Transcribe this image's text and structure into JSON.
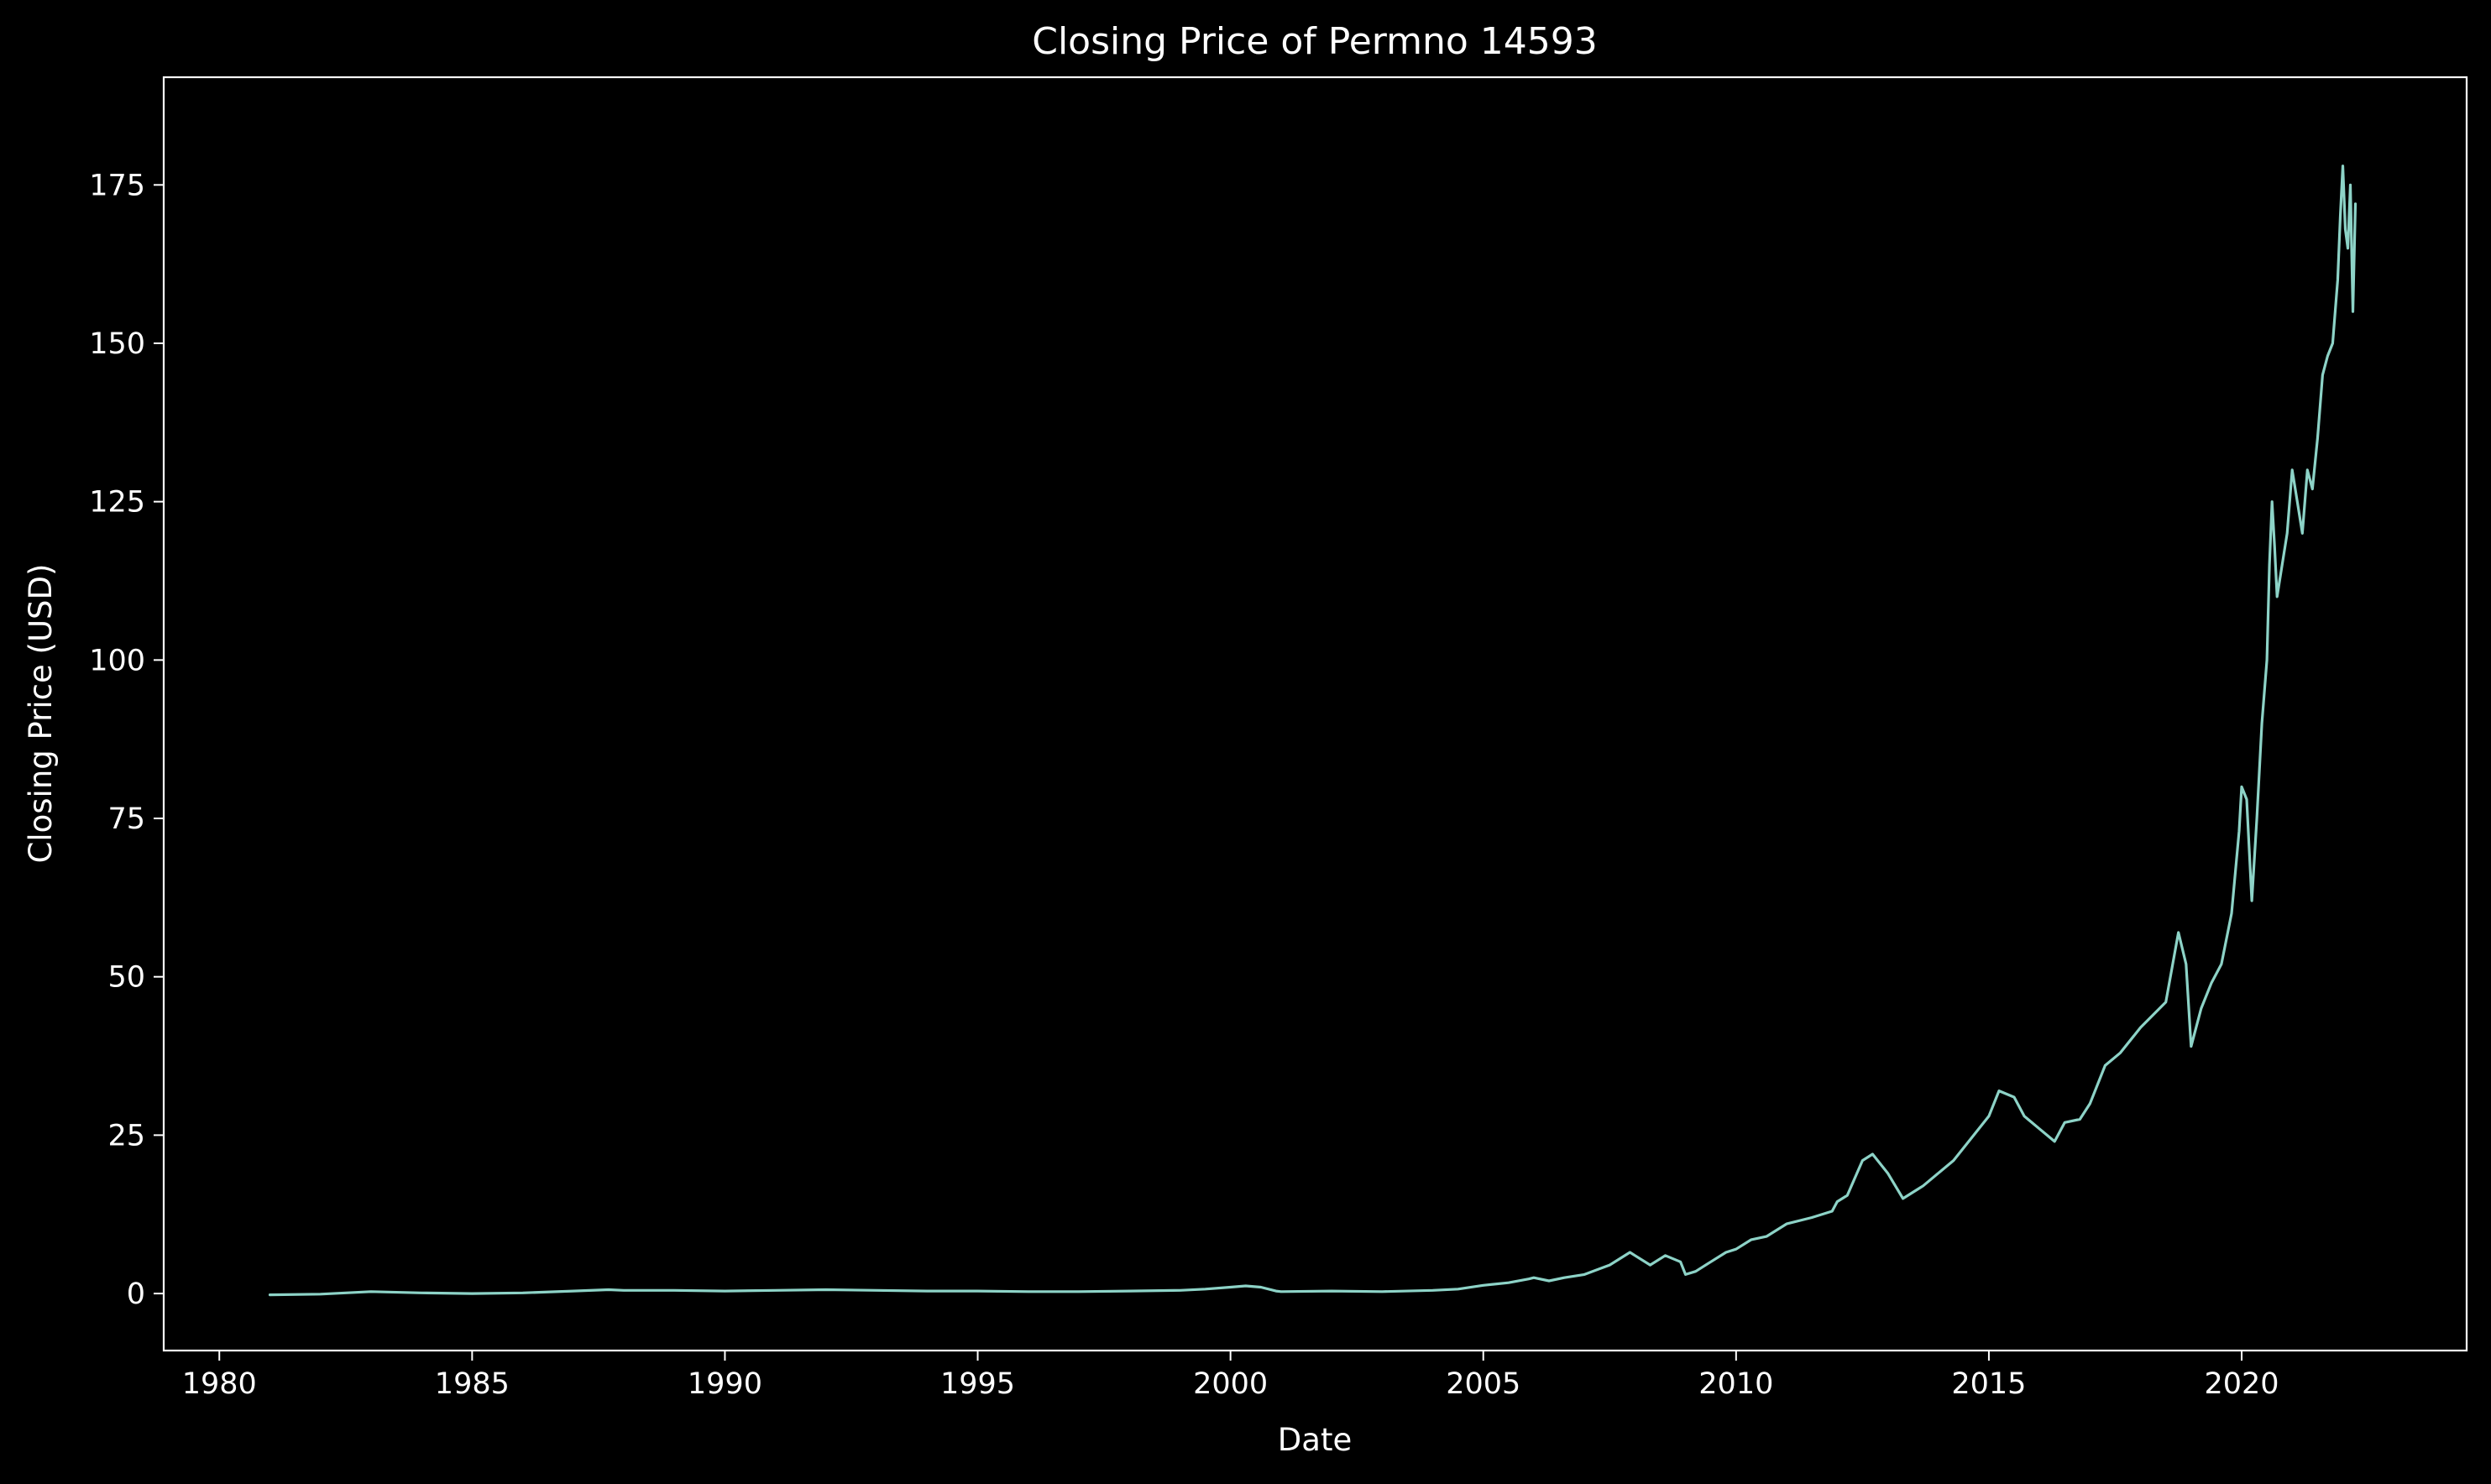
{
  "chart_data": {
    "type": "line",
    "title": "Closing Price of Permno 14593",
    "xlabel": "Date",
    "ylabel": "Closing Price (USD)",
    "xlim": [
      1978.9,
      2024.45
    ],
    "ylim": [
      -9,
      192
    ],
    "x_ticks": [
      "1980",
      "1985",
      "1990",
      "1995",
      "2000",
      "2005",
      "2010",
      "2015",
      "2020"
    ],
    "y_ticks": [
      "0",
      "25",
      "50",
      "75",
      "100",
      "125",
      "150",
      "175"
    ],
    "grid": false,
    "legend": "none",
    "series": [
      {
        "color": "#8dd3c7",
        "x": [
          1981.0,
          1982.0,
          1983.0,
          1984.0,
          1985.0,
          1986.0,
          1987.0,
          1987.7,
          1988.0,
          1989.0,
          1990.0,
          1991.0,
          1992.0,
          1993.0,
          1994.0,
          1995.0,
          1996.0,
          1997.0,
          1998.0,
          1999.0,
          1999.5,
          2000.0,
          2000.3,
          2000.6,
          2000.9,
          2001.0,
          2002.0,
          2003.0,
          2004.0,
          2004.5,
          2005.0,
          2005.5,
          2005.9,
          2006.0,
          2006.3,
          2006.6,
          2007.0,
          2007.5,
          2007.9,
          2008.0,
          2008.3,
          2008.6,
          2008.9,
          2009.0,
          2009.2,
          2009.5,
          2009.8,
          2010.0,
          2010.3,
          2010.6,
          2011.0,
          2011.5,
          2011.9,
          2012.0,
          2012.2,
          2012.5,
          2012.7,
          2013.0,
          2013.3,
          2013.7,
          2014.0,
          2014.3,
          2014.7,
          2015.0,
          2015.2,
          2015.5,
          2015.7,
          2016.0,
          2016.3,
          2016.5,
          2016.8,
          2017.0,
          2017.3,
          2017.6,
          2018.0,
          2018.5,
          2018.75,
          2018.9,
          2019.0,
          2019.2,
          2019.4,
          2019.6,
          2019.8,
          2019.95,
          2020.0,
          2020.1,
          2020.2,
          2020.3,
          2020.4,
          2020.5,
          2020.55,
          2020.6,
          2020.65,
          2020.7,
          2020.8,
          2020.9,
          2021.0,
          2021.1,
          2021.2,
          2021.3,
          2021.4,
          2021.5,
          2021.6,
          2021.7,
          2021.8,
          2021.9,
          2021.95,
          2022.0,
          2022.05,
          2022.1,
          2022.15,
          2022.2,
          2022.25
        ],
        "y": [
          -0.2,
          -0.1,
          0.3,
          0.1,
          0.0,
          0.1,
          0.4,
          0.6,
          0.5,
          0.5,
          0.4,
          0.5,
          0.6,
          0.5,
          0.4,
          0.4,
          0.3,
          0.3,
          0.4,
          0.5,
          0.7,
          1.0,
          1.2,
          1.0,
          0.4,
          0.3,
          0.4,
          0.3,
          0.5,
          0.7,
          1.3,
          1.7,
          2.3,
          2.5,
          2.0,
          2.5,
          3.0,
          4.5,
          6.5,
          6.0,
          4.5,
          6.0,
          5.0,
          3.0,
          3.5,
          5.0,
          6.5,
          7.0,
          8.5,
          9.0,
          11.0,
          12.0,
          13.0,
          14.5,
          15.5,
          21.0,
          22.0,
          19.0,
          15.0,
          17.0,
          19.0,
          21.0,
          25.0,
          28.0,
          32.0,
          31.0,
          28.0,
          26.0,
          24.0,
          27.0,
          27.5,
          30.0,
          36.0,
          38.0,
          42.0,
          46.0,
          57.0,
          52.0,
          39.0,
          45.0,
          49.0,
          52.0,
          60.0,
          73.0,
          80.0,
          78.0,
          62.0,
          75.0,
          90.0,
          100.0,
          115.0,
          125.0,
          118.0,
          110.0,
          115.0,
          120.0,
          130.0,
          125.0,
          120.0,
          130.0,
          127.0,
          135.0,
          145.0,
          148.0,
          150.0,
          160.0,
          170.0,
          178.0,
          168.0,
          165.0,
          175.0,
          155.0,
          172.0
        ]
      }
    ]
  }
}
